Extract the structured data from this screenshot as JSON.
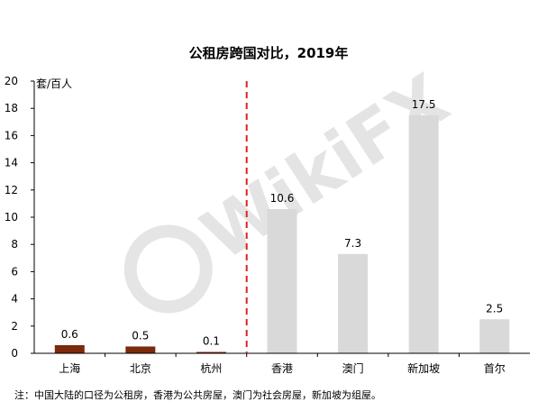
{
  "chart_data": {
    "type": "bar",
    "title": "公租房跨国对比，2019年",
    "ylabel": "套/百人",
    "ylim": [
      0,
      20
    ],
    "yticks": [
      0,
      2,
      4,
      6,
      8,
      10,
      12,
      14,
      16,
      18,
      20
    ],
    "categories": [
      "上海",
      "北京",
      "杭州",
      "香港",
      "澳门",
      "新加坡",
      "首尔"
    ],
    "values": [
      0.6,
      0.5,
      0.1,
      10.6,
      7.3,
      17.5,
      2.5
    ],
    "data_labels": [
      "0.6",
      "0.5",
      "0.1",
      "10.6",
      "7.3",
      "17.5",
      "2.5"
    ],
    "divider_after_index": 2,
    "grid": false,
    "legend": "none",
    "colors": {
      "domestic": "#7b2a0c",
      "foreign": "#d9d9d9",
      "divider": "#e02020",
      "axis": "#000000"
    }
  },
  "note": "注：中国大陆的口径为公租房，香港为公共房屋，澳门为社会房屋，新加坡为组屋。",
  "watermark": "WikiFX"
}
